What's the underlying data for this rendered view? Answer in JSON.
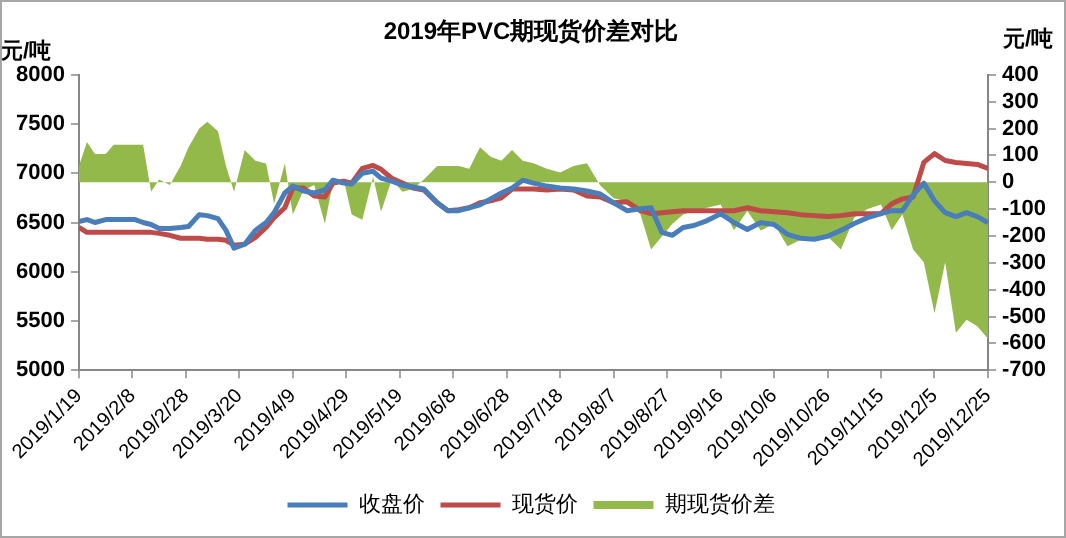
{
  "chart_data": {
    "type": "line",
    "title": "2019年PVC期现货价差对比",
    "ylabel": "元/吨",
    "y2label": "元/吨",
    "x": [
      "2019-01-19",
      "2019-01-22",
      "2019-01-25",
      "2019-01-29",
      "2019-02-01",
      "2019-02-05",
      "2019-02-09",
      "2019-02-12",
      "2019-02-15",
      "2019-02-18",
      "2019-02-22",
      "2019-02-26",
      "2019-03-01",
      "2019-03-05",
      "2019-03-08",
      "2019-03-12",
      "2019-03-15",
      "2019-03-18",
      "2019-03-22",
      "2019-03-26",
      "2019-03-30",
      "2019-04-02",
      "2019-04-06",
      "2019-04-09",
      "2019-04-13",
      "2019-04-17",
      "2019-04-21",
      "2019-04-24",
      "2019-04-28",
      "2019-05-01",
      "2019-05-05",
      "2019-05-09",
      "2019-05-12",
      "2019-05-16",
      "2019-05-20",
      "2019-05-24",
      "2019-05-28",
      "2019-06-02",
      "2019-06-06",
      "2019-06-10",
      "2019-06-14",
      "2019-06-18",
      "2019-06-22",
      "2019-06-26",
      "2019-06-30",
      "2019-07-04",
      "2019-07-08",
      "2019-07-13",
      "2019-07-18",
      "2019-07-23",
      "2019-07-28",
      "2019-08-02",
      "2019-08-07",
      "2019-08-12",
      "2019-08-17",
      "2019-08-21",
      "2019-08-25",
      "2019-08-29",
      "2019-09-02",
      "2019-09-06",
      "2019-09-11",
      "2019-09-16",
      "2019-09-21",
      "2019-09-26",
      "2019-10-01",
      "2019-10-06",
      "2019-10-11",
      "2019-10-16",
      "2019-10-21",
      "2019-10-26",
      "2019-10-31",
      "2019-11-05",
      "2019-11-10",
      "2019-11-15",
      "2019-11-19",
      "2019-11-23",
      "2019-11-27",
      "2019-12-01",
      "2019-12-05",
      "2019-12-09",
      "2019-12-13",
      "2019-12-17",
      "2019-12-21",
      "2019-12-25"
    ],
    "series": [
      {
        "name": "期现货价差",
        "type": "area",
        "axis": "y2",
        "color": "#92b94a",
        "values": [
          60,
          150,
          105,
          105,
          140,
          140,
          140,
          140,
          -35,
          10,
          -10,
          60,
          130,
          200,
          225,
          190,
          60,
          -35,
          120,
          80,
          70,
          -80,
          70,
          -120,
          -30,
          -10,
          -155,
          0,
          10,
          -120,
          -140,
          20,
          -110,
          10,
          -35,
          -25,
          10,
          60,
          60,
          60,
          50,
          130,
          95,
          80,
          120,
          80,
          71,
          50,
          36,
          60,
          71,
          -12,
          -60,
          -71,
          -119,
          -250,
          -202,
          -155,
          -120,
          -107,
          -95,
          -83,
          -179,
          -107,
          -180,
          -155,
          -238,
          -214,
          -214,
          -202,
          -250,
          -131,
          -100,
          -83,
          -179,
          -119,
          -250,
          -298,
          -488,
          -298,
          -560,
          -512,
          -536,
          -583
        ]
      },
      {
        "name": "收盘价",
        "color": "#4a7ebb",
        "values": [
          6510,
          6530,
          6500,
          6530,
          6530,
          6530,
          6530,
          6500,
          6480,
          6440,
          6440,
          6450,
          6460,
          6580,
          6570,
          6540,
          6420,
          6240,
          6280,
          6420,
          6500,
          6600,
          6800,
          6870,
          6820,
          6800,
          6830,
          6930,
          6900,
          6890,
          7000,
          7020,
          6950,
          6920,
          6880,
          6860,
          6840,
          6700,
          6620,
          6620,
          6650,
          6680,
          6740,
          6800,
          6850,
          6930,
          6900,
          6870,
          6850,
          6840,
          6820,
          6790,
          6700,
          6620,
          6640,
          6650,
          6400,
          6370,
          6450,
          6470,
          6520,
          6590,
          6500,
          6430,
          6500,
          6480,
          6380,
          6340,
          6330,
          6360,
          6420,
          6490,
          6550,
          6590,
          6620,
          6620,
          6780,
          6900,
          6720,
          6600,
          6560,
          6600,
          6560,
          6500
        ]
      },
      {
        "name": "现货价",
        "color": "#be4b48",
        "values": [
          6450,
          6400,
          6400,
          6400,
          6400,
          6400,
          6400,
          6400,
          6400,
          6390,
          6370,
          6340,
          6340,
          6340,
          6330,
          6330,
          6320,
          6270,
          6280,
          6350,
          6450,
          6550,
          6650,
          6850,
          6850,
          6770,
          6760,
          6900,
          6920,
          6900,
          7050,
          7080,
          7040,
          6950,
          6900,
          6850,
          6830,
          6700,
          6620,
          6630,
          6650,
          6700,
          6720,
          6750,
          6840,
          6840,
          6840,
          6830,
          6840,
          6830,
          6770,
          6760,
          6700,
          6710,
          6620,
          6590,
          6600,
          6610,
          6620,
          6620,
          6620,
          6620,
          6620,
          6650,
          6620,
          6610,
          6600,
          6580,
          6570,
          6560,
          6570,
          6590,
          6590,
          6590,
          6690,
          6740,
          6760,
          7110,
          7200,
          7130,
          7110,
          7100,
          7090,
          7050
        ]
      }
    ],
    "xlim": [
      "2019-01-19",
      "2019-12-25"
    ],
    "xticks": [
      {
        "value": "2019-01-19",
        "label": "2019/1/19"
      },
      {
        "value": "2019-02-08",
        "label": "2019/2/8"
      },
      {
        "value": "2019-02-28",
        "label": "2019/2/28"
      },
      {
        "value": "2019-03-20",
        "label": "2019/3/20"
      },
      {
        "value": "2019-04-09",
        "label": "2019/4/9"
      },
      {
        "value": "2019-04-29",
        "label": "2019/4/29"
      },
      {
        "value": "2019-05-19",
        "label": "2019/5/19"
      },
      {
        "value": "2019-06-08",
        "label": "2019/6/8"
      },
      {
        "value": "2019-06-28",
        "label": "2019/6/28"
      },
      {
        "value": "2019-07-18",
        "label": "2019/7/18"
      },
      {
        "value": "2019-08-07",
        "label": "2019/8/7"
      },
      {
        "value": "2019-08-27",
        "label": "2019/8/27"
      },
      {
        "value": "2019-09-16",
        "label": "2019/9/16"
      },
      {
        "value": "2019-10-06",
        "label": "2019/10/6"
      },
      {
        "value": "2019-10-26",
        "label": "2019/10/26"
      },
      {
        "value": "2019-11-15",
        "label": "2019/11/15"
      },
      {
        "value": "2019-12-05",
        "label": "2019/12/5"
      },
      {
        "value": "2019-12-25",
        "label": "2019/12/25"
      }
    ],
    "ylim": [
      5000,
      8000
    ],
    "yticks": [
      5000,
      5500,
      6000,
      6500,
      7000,
      7500,
      8000
    ],
    "y2lim": [
      -700,
      400
    ],
    "y2ticks": [
      -700,
      -600,
      -500,
      -400,
      -300,
      -200,
      -100,
      0,
      100,
      200,
      300,
      400
    ],
    "grid": false,
    "legend": "bottom",
    "marker": "none",
    "line_style": "solid"
  }
}
